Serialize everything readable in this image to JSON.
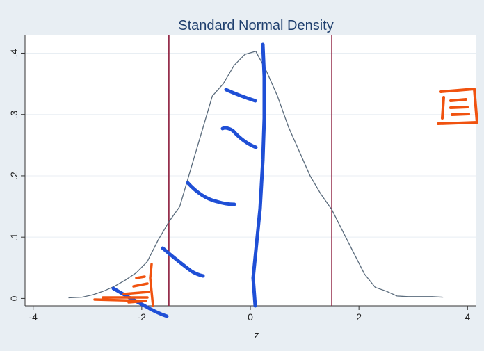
{
  "chart_data": {
    "type": "line",
    "title": "Standard Normal Density",
    "xlabel": "z",
    "ylabel": "",
    "xlim": [
      -4.15,
      4.15
    ],
    "ylim": [
      -0.012,
      0.43
    ],
    "xticks": [
      -4,
      -2,
      0,
      2,
      4
    ],
    "xtick_labels": [
      "-4",
      "-2",
      "0",
      "2",
      "4"
    ],
    "yticks": [
      0,
      0.1,
      0.2,
      0.3,
      0.4
    ],
    "ytick_labels": [
      "0",
      ".1",
      ".2",
      ".3",
      ".4"
    ],
    "grid": "horizontal",
    "vlines": [
      -1.5,
      1.5
    ],
    "series": [
      {
        "x": [
          -3.35,
          -3.1,
          -2.9,
          -2.7,
          -2.5,
          -2.3,
          -2.1,
          -1.9,
          -1.7,
          -1.5,
          -1.3,
          -1.1,
          -0.9,
          -0.7,
          -0.5,
          -0.3,
          -0.1,
          0.1,
          0.3,
          0.5,
          0.7,
          0.9,
          1.1,
          1.3,
          1.5,
          1.7,
          1.9,
          2.1,
          2.3,
          2.5,
          2.7,
          2.9,
          3.1,
          3.35,
          3.55
        ],
        "values": [
          0.001,
          0.002,
          0.006,
          0.012,
          0.02,
          0.03,
          0.042,
          0.06,
          0.095,
          0.125,
          0.15,
          0.21,
          0.27,
          0.33,
          0.35,
          0.38,
          0.398,
          0.403,
          0.37,
          0.33,
          0.28,
          0.24,
          0.2,
          0.17,
          0.145,
          0.11,
          0.075,
          0.04,
          0.018,
          0.012,
          0.004,
          0.003,
          0.003,
          0.003,
          0.002
        ]
      }
    ],
    "colors": {
      "frame_background": "#e8eef3",
      "plot_background": "#ffffff",
      "curve": "#5a6b7c",
      "vlines": "#8b1a3a",
      "title": "#1f3f6e",
      "grid": "#e8eef3",
      "ink_blue": "#1f4fd6",
      "ink_orange": "#f0520f"
    }
  }
}
